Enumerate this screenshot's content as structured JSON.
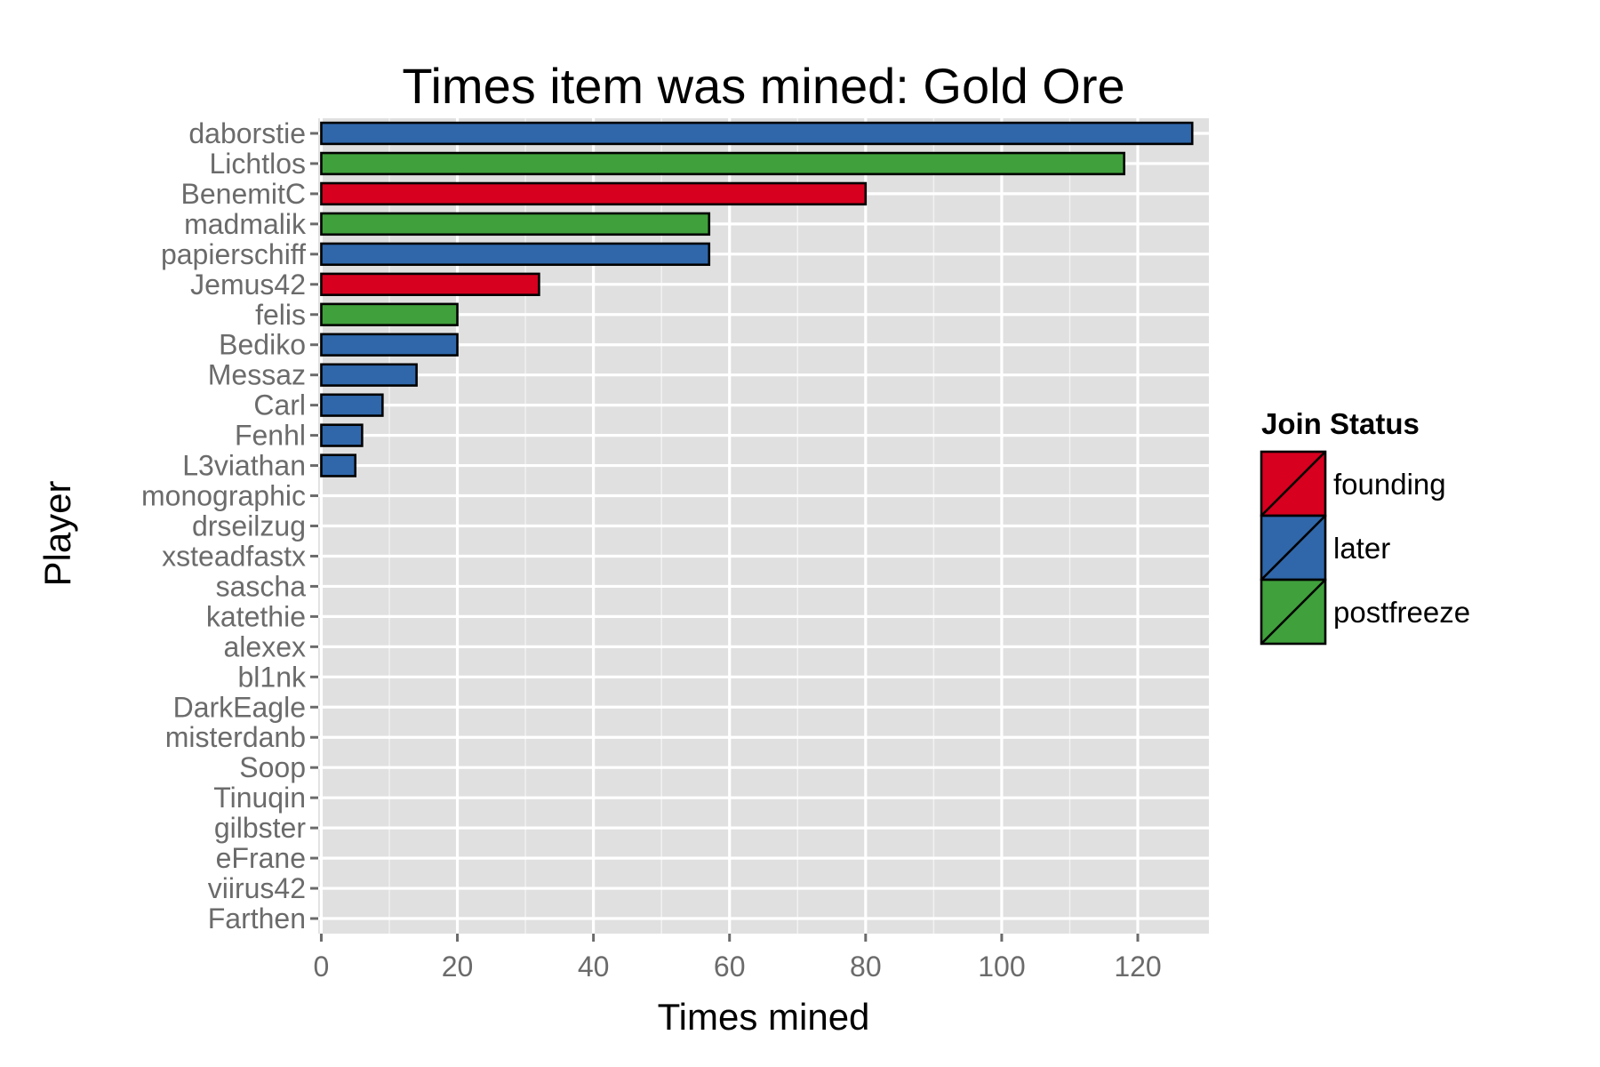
{
  "chart_data": {
    "type": "bar",
    "orientation": "horizontal",
    "title": "Times item was mined: Gold Ore",
    "xlabel": "Times mined",
    "ylabel": "Player",
    "xlim": [
      0,
      130
    ],
    "x_ticks": [
      0,
      20,
      40,
      60,
      80,
      100,
      120
    ],
    "grid": true,
    "legend": {
      "title": "Join Status",
      "placement": "right",
      "entries": [
        {
          "name": "founding",
          "color": "#d7001f"
        },
        {
          "name": "later",
          "color": "#2f67aa"
        },
        {
          "name": "postfreeze",
          "color": "#40a03c"
        }
      ]
    },
    "categories": [
      "daborstie",
      "Lichtlos",
      "BenemitC",
      "madmalik",
      "papierschiff",
      "Jemus42",
      "felis",
      "Bediko",
      "Messaz",
      "Carl",
      "Fenhl",
      "L3viathan",
      "monographic",
      "drseilzug",
      "xsteadfastx",
      "sascha",
      "katethie",
      "alexex",
      "bl1nk",
      "DarkEagle",
      "misterdanb",
      "Soop",
      "Tinuqin",
      "gilbster",
      "eFrane",
      "viirus42",
      "Farthen"
    ],
    "values": [
      128,
      118,
      80,
      57,
      57,
      32,
      20,
      20,
      14,
      9,
      6,
      5,
      0,
      0,
      0,
      0,
      0,
      0,
      0,
      0,
      0,
      0,
      0,
      0,
      0,
      0,
      0
    ],
    "status": [
      "later",
      "postfreeze",
      "founding",
      "postfreeze",
      "later",
      "founding",
      "postfreeze",
      "later",
      "later",
      "later",
      "later",
      "later",
      "later",
      "later",
      "later",
      "later",
      "later",
      "later",
      "later",
      "later",
      "later",
      "later",
      "later",
      "later",
      "later",
      "later",
      "later"
    ]
  }
}
